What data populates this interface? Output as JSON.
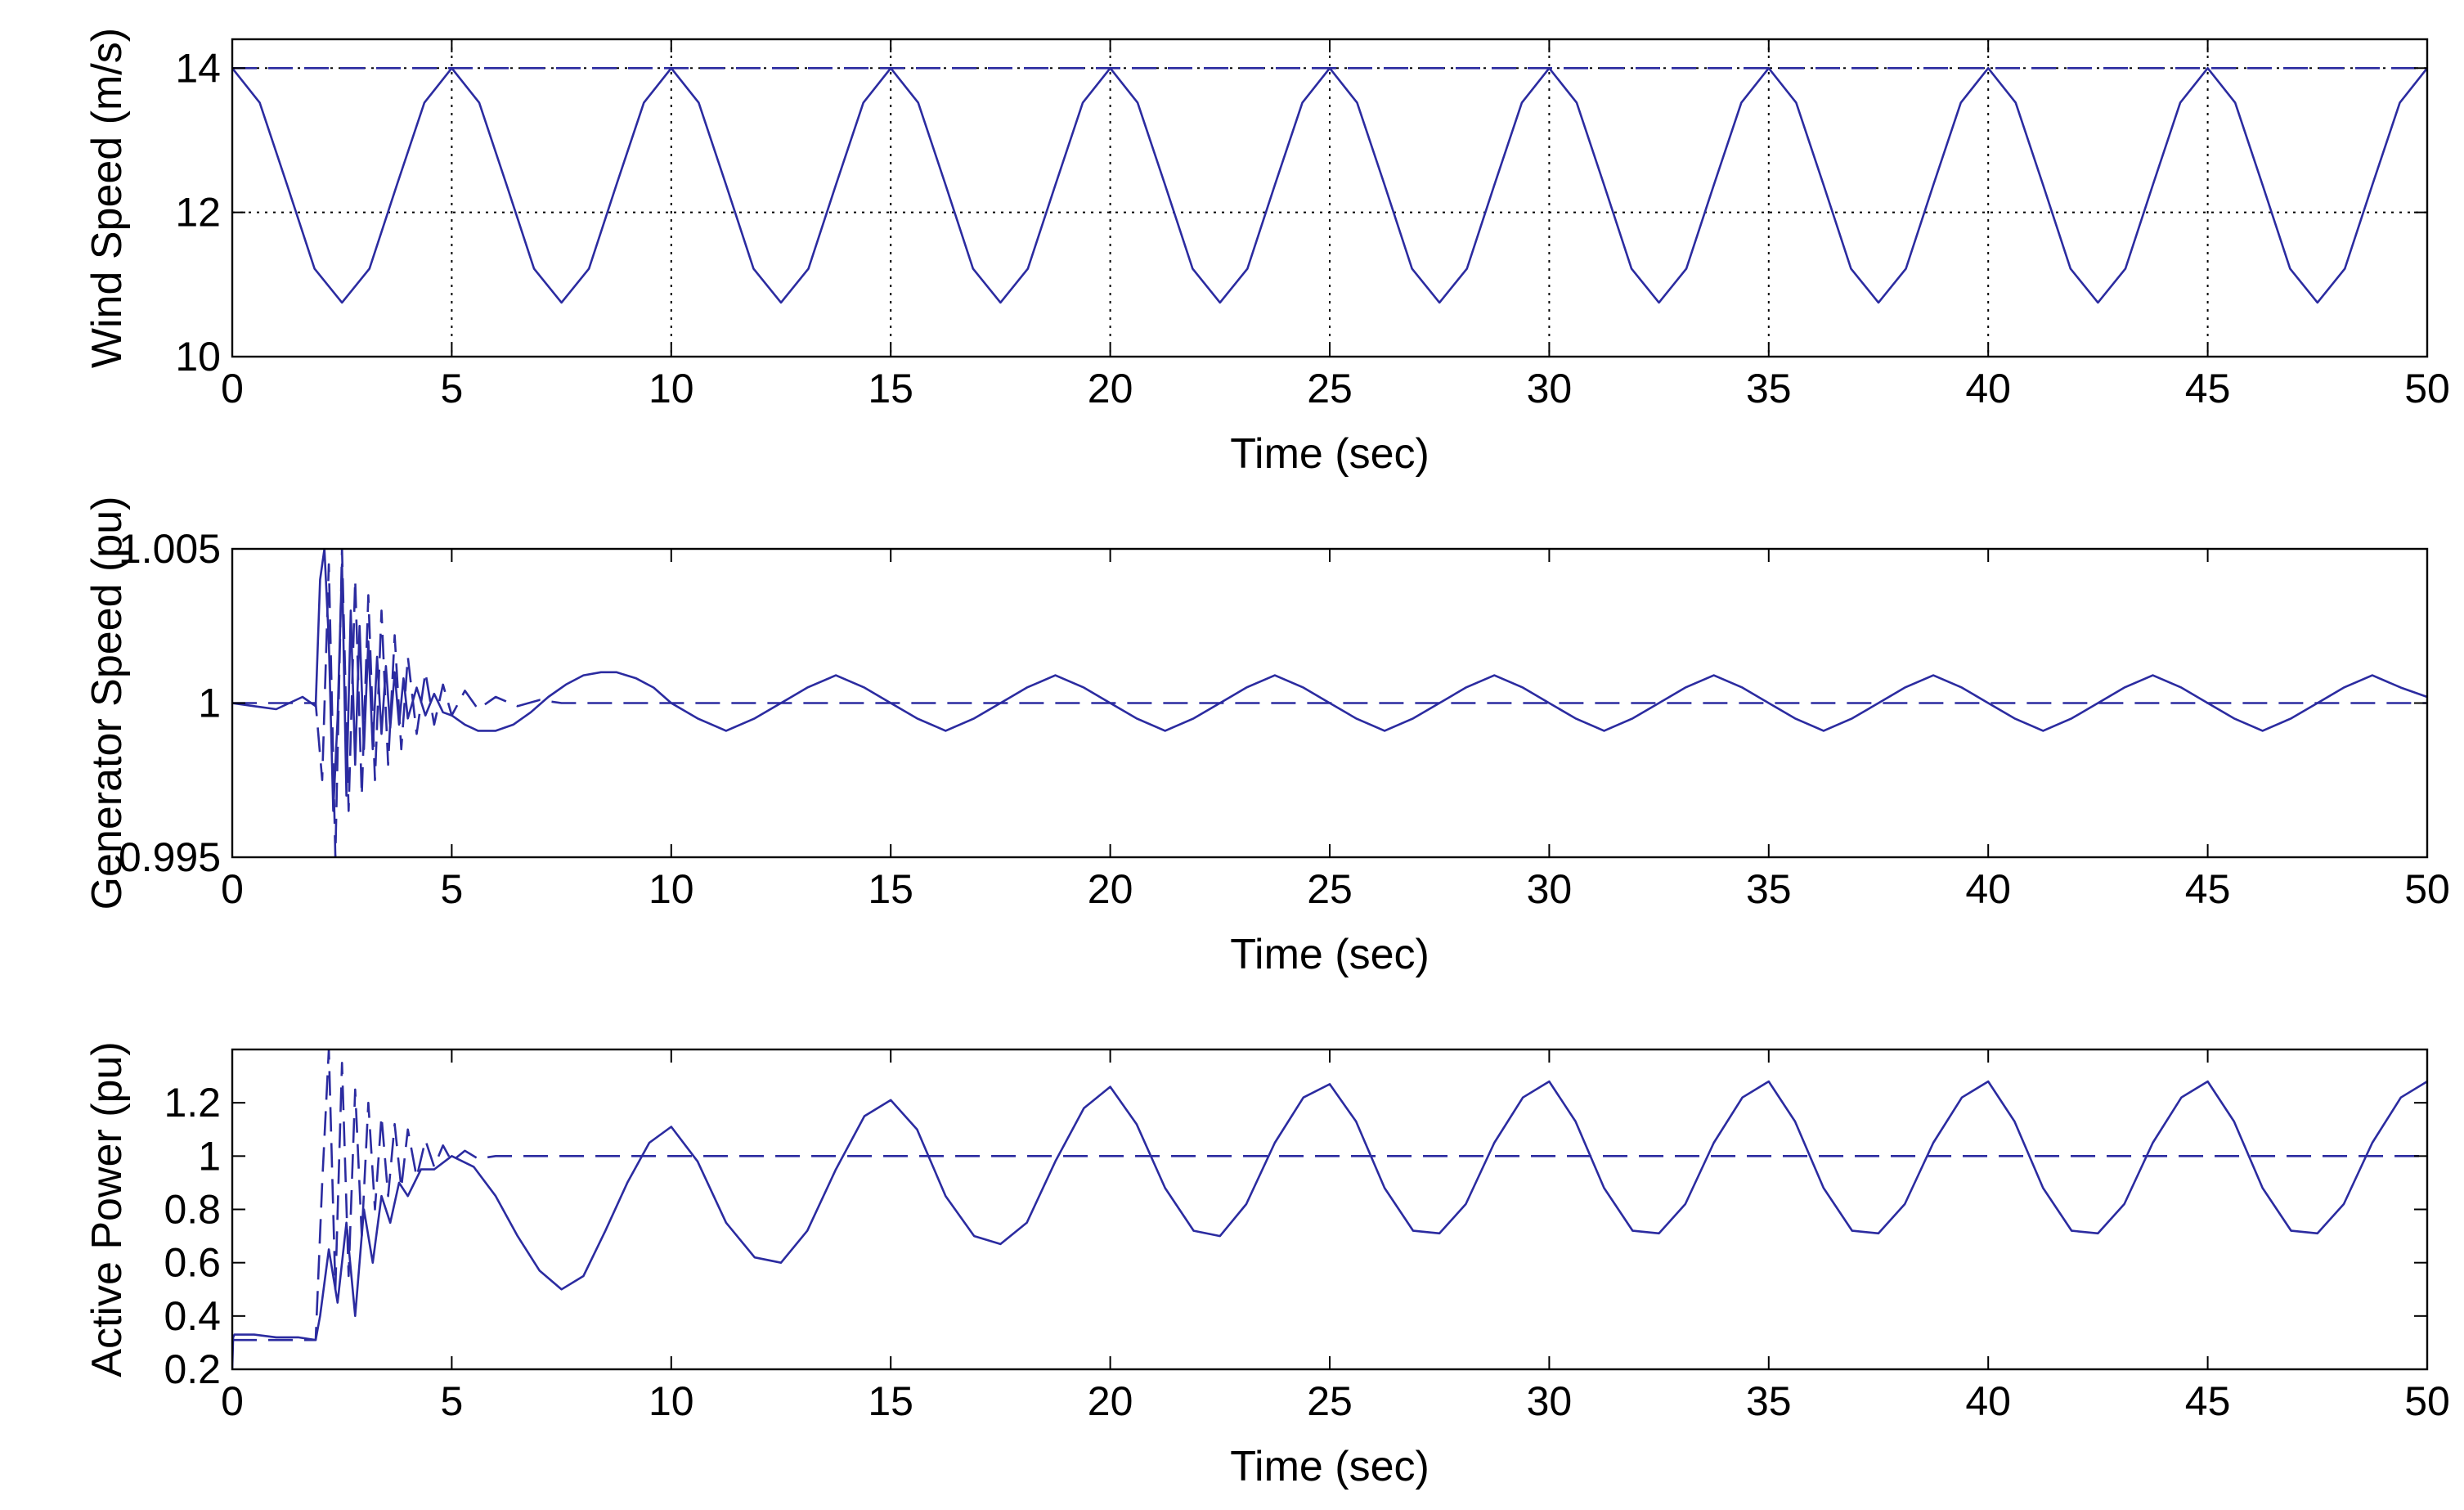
{
  "colors": {
    "line": "#2b2ba0",
    "axes": "#000000",
    "background": "#ffffff"
  },
  "chart_data": [
    {
      "type": "line",
      "id": "wind",
      "title": "",
      "xlabel": "Time (sec)",
      "ylabel": "Wind Speed (m/s)",
      "xlim": [
        0,
        50
      ],
      "ylim": [
        10,
        14.4
      ],
      "xticks": [
        0,
        5,
        10,
        15,
        20,
        25,
        30,
        35,
        40,
        45,
        50
      ],
      "yticks": [
        10,
        12,
        14
      ],
      "ytick_labels": [
        "10",
        "12",
        "14"
      ],
      "grid": true,
      "series": [
        {
          "style": "solid",
          "x": [
            0,
            0.625,
            1.25,
            1.875,
            2.5,
            3.125,
            3.75,
            4.375,
            5,
            5.625,
            6.25,
            6.875,
            7.5,
            8.125,
            8.75,
            9.375,
            10,
            10.625,
            11.25,
            11.875,
            12.5,
            13.125,
            13.75,
            14.375,
            15,
            15.625,
            16.25,
            16.875,
            17.5,
            18.125,
            18.75,
            19.375,
            20,
            20.625,
            21.25,
            21.875,
            22.5,
            23.125,
            23.75,
            24.375,
            25,
            25.625,
            26.25,
            26.875,
            27.5,
            28.125,
            28.75,
            29.375,
            30,
            30.625,
            31.25,
            31.875,
            32.5,
            33.125,
            33.75,
            34.375,
            35,
            35.625,
            36.25,
            36.875,
            37.5,
            38.125,
            38.75,
            39.375,
            40,
            40.625,
            41.25,
            41.875,
            42.5,
            43.125,
            43.75,
            44.375,
            45,
            45.625,
            46.25,
            46.875,
            47.5,
            48.125,
            48.75,
            49.375,
            50
          ],
          "y": [
            14,
            13.52,
            12.38,
            11.22,
            10.75,
            11.22,
            12.38,
            13.52,
            14,
            13.52,
            12.38,
            11.22,
            10.75,
            11.22,
            12.38,
            13.52,
            14,
            13.52,
            12.38,
            11.22,
            10.75,
            11.22,
            12.38,
            13.52,
            14,
            13.52,
            12.38,
            11.22,
            10.75,
            11.22,
            12.38,
            13.52,
            14,
            13.52,
            12.38,
            11.22,
            10.75,
            11.22,
            12.38,
            13.52,
            14,
            13.52,
            12.38,
            11.22,
            10.75,
            11.22,
            12.38,
            13.52,
            14,
            13.52,
            12.38,
            11.22,
            10.75,
            11.22,
            12.38,
            13.52,
            14,
            13.52,
            12.38,
            11.22,
            10.75,
            11.22,
            12.38,
            13.52,
            14,
            13.52,
            12.38,
            11.22,
            10.75,
            11.22,
            12.38,
            13.52,
            14,
            13.52,
            12.38,
            11.22,
            10.75,
            11.22,
            12.38,
            13.52,
            14
          ]
        },
        {
          "style": "dashed",
          "x": [
            0,
            50
          ],
          "y": [
            14,
            14
          ]
        }
      ]
    },
    {
      "type": "line",
      "id": "genspeed",
      "title": "",
      "xlabel": "Time (sec)",
      "ylabel": "Generator Speed (pu)",
      "xlim": [
        0,
        50
      ],
      "ylim": [
        0.995,
        1.005
      ],
      "xticks": [
        0,
        5,
        10,
        15,
        20,
        25,
        30,
        35,
        40,
        45,
        50
      ],
      "yticks": [
        0.995,
        1,
        1.005
      ],
      "ytick_labels": [
        "0.995",
        "1",
        "1.005"
      ],
      "grid": false,
      "series": [
        {
          "style": "solid",
          "x": [
            0,
            0.5,
            1,
            1.3,
            1.6,
            1.9,
            2.0,
            2.1,
            2.2,
            2.3,
            2.4,
            2.5,
            2.6,
            2.7,
            2.8,
            2.9,
            3.0,
            3.1,
            3.2,
            3.3,
            3.4,
            3.5,
            3.6,
            3.7,
            3.8,
            3.9,
            4.0,
            4.2,
            4.4,
            4.6,
            4.8,
            5.0,
            5.3,
            5.6,
            6.0,
            6.4,
            6.8,
            7.2,
            7.6,
            8.0,
            8.4,
            8.75,
            9.2,
            9.6,
            10.0,
            10.6,
            11.25,
            11.9,
            12.5,
            13.1,
            13.75,
            14.4,
            15.0,
            15.6,
            16.25,
            16.9,
            17.5,
            18.1,
            18.75,
            19.4,
            20.0,
            20.6,
            21.25,
            21.9,
            22.5,
            23.1,
            23.75,
            24.4,
            25.0,
            25.6,
            26.25,
            26.9,
            27.5,
            28.1,
            28.75,
            29.4,
            30.0,
            30.6,
            31.25,
            31.9,
            32.5,
            33.1,
            33.75,
            34.4,
            35.0,
            35.6,
            36.25,
            36.9,
            37.5,
            38.1,
            38.75,
            39.4,
            40.0,
            40.6,
            41.25,
            41.9,
            42.5,
            43.1,
            43.75,
            44.4,
            45.0,
            45.6,
            46.25,
            46.9,
            47.5,
            48.1,
            48.75,
            49.4,
            50
          ],
          "y": [
            1.0,
            0.9999,
            0.9998,
            1.0,
            1.0002,
            0.9999,
            1.004,
            1.005,
            1.002,
            0.9965,
            0.9995,
            1.0045,
            0.997,
            1.003,
            0.998,
            1.0025,
            0.9985,
            1.002,
            0.9985,
            1.0015,
            0.999,
            1.0012,
            0.9992,
            1.001,
            0.9993,
            1.0008,
            0.9995,
            1.0005,
            0.9996,
            1.0003,
            0.9997,
            0.9996,
            0.9993,
            0.9991,
            0.9991,
            0.9993,
            0.9997,
            1.0002,
            1.0006,
            1.0009,
            1.001,
            1.001,
            1.0008,
            1.0005,
            1.0,
            0.9995,
            0.9991,
            0.9995,
            1.0,
            1.0005,
            1.0009,
            1.0005,
            1.0,
            0.9995,
            0.9991,
            0.9995,
            1.0,
            1.0005,
            1.0009,
            1.0005,
            1.0,
            0.9995,
            0.9991,
            0.9995,
            1.0,
            1.0005,
            1.0009,
            1.0005,
            1.0,
            0.9995,
            0.9991,
            0.9995,
            1.0,
            1.0005,
            1.0009,
            1.0005,
            1.0,
            0.9995,
            0.9991,
            0.9995,
            1.0,
            1.0005,
            1.0009,
            1.0005,
            1.0,
            0.9995,
            0.9991,
            0.9995,
            1.0,
            1.0005,
            1.0009,
            1.0005,
            1.0,
            0.9995,
            0.9991,
            0.9995,
            1.0,
            1.0005,
            1.0009,
            1.0005,
            1.0,
            0.9995,
            0.9991,
            0.9995,
            1.0,
            1.0005,
            1.0009,
            1.0005,
            1.0002
          ]
        },
        {
          "style": "dashed",
          "x": [
            0,
            1.9,
            2.05,
            2.2,
            2.35,
            2.5,
            2.65,
            2.8,
            2.95,
            3.1,
            3.25,
            3.4,
            3.55,
            3.7,
            3.85,
            4.0,
            4.2,
            4.4,
            4.6,
            4.8,
            5.0,
            5.3,
            5.6,
            6.0,
            6.5,
            7.0,
            7.5,
            8.0,
            50
          ],
          "y": [
            1.0,
            1.0,
            0.9975,
            1.0045,
            0.995,
            1.005,
            0.9965,
            1.004,
            0.997,
            1.0035,
            0.9975,
            1.003,
            0.998,
            1.0022,
            0.9985,
            1.0015,
            0.999,
            1.001,
            0.9993,
            1.0006,
            0.9996,
            1.0004,
            0.9998,
            1.0002,
            0.9999,
            1.0001,
            1.0,
            1.0,
            1.0
          ]
        }
      ]
    },
    {
      "type": "line",
      "id": "power",
      "title": "",
      "xlabel": "Time (sec)",
      "ylabel": "Active Power (pu)",
      "xlim": [
        0,
        50
      ],
      "ylim": [
        0.2,
        1.4
      ],
      "xticks": [
        0,
        5,
        10,
        15,
        20,
        25,
        30,
        35,
        40,
        45,
        50
      ],
      "yticks": [
        0.2,
        0.4,
        0.6,
        0.8,
        1,
        1.2
      ],
      "ytick_labels": [
        "0.2",
        "0.4",
        "0.6",
        "0.8",
        "1",
        "1.2"
      ],
      "grid": false,
      "series": [
        {
          "style": "solid",
          "x": [
            0,
            0.02,
            0.05,
            0.5,
            1,
            1.5,
            1.9,
            2.0,
            2.2,
            2.4,
            2.6,
            2.8,
            3.0,
            3.2,
            3.4,
            3.6,
            3.8,
            4.0,
            4.3,
            4.6,
            5.0,
            5.5,
            6.0,
            6.5,
            7.0,
            7.5,
            8.0,
            8.5,
            9.0,
            9.5,
            10.0,
            10.6,
            11.25,
            11.9,
            12.5,
            13.1,
            13.75,
            14.4,
            15.0,
            15.6,
            16.25,
            16.9,
            17.5,
            18.1,
            18.75,
            19.4,
            20.0,
            20.6,
            21.25,
            21.9,
            22.5,
            23.1,
            23.75,
            24.4,
            25.0,
            25.6,
            26.25,
            26.9,
            27.5,
            28.1,
            28.75,
            29.4,
            30.0,
            30.6,
            31.25,
            31.9,
            32.5,
            33.1,
            33.75,
            34.4,
            35.0,
            35.6,
            36.25,
            36.9,
            37.5,
            38.1,
            38.75,
            39.4,
            40.0,
            40.6,
            41.25,
            41.9,
            42.5,
            43.1,
            43.75,
            44.4,
            45.0,
            45.6,
            46.25,
            46.9,
            47.5,
            48.1,
            48.75,
            49.4,
            50
          ],
          "y": [
            0.2,
            0.32,
            0.33,
            0.33,
            0.32,
            0.32,
            0.31,
            0.4,
            0.65,
            0.45,
            0.75,
            0.4,
            0.8,
            0.6,
            0.85,
            0.75,
            0.9,
            0.85,
            0.95,
            0.95,
            1.0,
            0.96,
            0.85,
            0.7,
            0.57,
            0.5,
            0.55,
            0.72,
            0.9,
            1.05,
            1.11,
            0.98,
            0.75,
            0.62,
            0.6,
            0.72,
            0.95,
            1.15,
            1.21,
            1.1,
            0.85,
            0.7,
            0.67,
            0.75,
            0.98,
            1.18,
            1.26,
            1.12,
            0.88,
            0.72,
            0.7,
            0.82,
            1.05,
            1.22,
            1.27,
            1.13,
            0.88,
            0.72,
            0.71,
            0.82,
            1.05,
            1.22,
            1.28,
            1.13,
            0.88,
            0.72,
            0.71,
            0.82,
            1.05,
            1.22,
            1.28,
            1.13,
            0.88,
            0.72,
            0.71,
            0.82,
            1.05,
            1.22,
            1.28,
            1.13,
            0.88,
            0.72,
            0.71,
            0.82,
            1.05,
            1.22,
            1.28,
            1.13,
            0.88,
            0.72,
            0.71,
            0.82,
            1.05,
            1.22,
            1.28
          ]
        },
        {
          "style": "dashed",
          "x": [
            0,
            1.9,
            2.05,
            2.2,
            2.35,
            2.5,
            2.65,
            2.8,
            2.95,
            3.1,
            3.25,
            3.4,
            3.55,
            3.7,
            3.85,
            4.0,
            4.2,
            4.4,
            4.6,
            4.8,
            5.0,
            5.3,
            5.6,
            6.0,
            50
          ],
          "y": [
            0.31,
            0.31,
            0.9,
            1.4,
            0.5,
            1.35,
            0.55,
            1.25,
            0.7,
            1.2,
            0.8,
            1.15,
            0.85,
            1.12,
            0.88,
            1.1,
            0.92,
            1.06,
            0.96,
            1.04,
            0.98,
            1.02,
            0.99,
            1.0,
            1.0
          ]
        }
      ]
    }
  ]
}
